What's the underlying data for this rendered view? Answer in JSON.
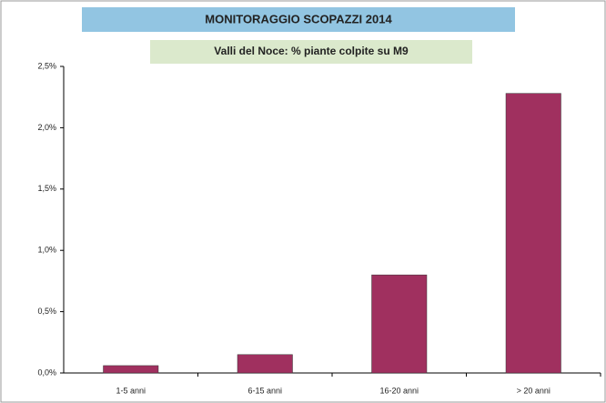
{
  "chart_data": {
    "type": "bar",
    "title": "MONITORAGGIO  SCOPAZZI  2014",
    "subtitle": "Valli del Noce: % piante colpite su M9",
    "categories": [
      "1-5 anni",
      "6-15 anni",
      "16-20 anni",
      "> 20 anni"
    ],
    "values": [
      0.06,
      0.15,
      0.8,
      2.28
    ],
    "color": "#a0305f",
    "ylim": [
      0,
      2.5
    ],
    "yticks": [
      {
        "value": 0,
        "label": "0,0%"
      },
      {
        "value": 0.5,
        "label": "0,5%"
      },
      {
        "value": 1,
        "label": "1,0%"
      },
      {
        "value": 1.5,
        "label": "1,5%"
      },
      {
        "value": 2,
        "label": "2,0%"
      },
      {
        "value": 2.5,
        "label": "2,5%"
      }
    ],
    "grid": false
  }
}
